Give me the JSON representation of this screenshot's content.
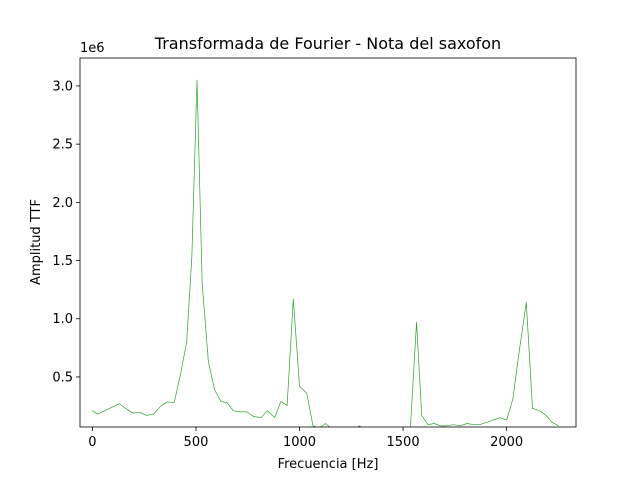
{
  "chart_data": {
    "type": "line",
    "title": "Transformada de Fourier - Nota del saxofon",
    "xlabel": "Frecuencia [Hz]",
    "ylabel": "Amplitud TTF",
    "y_offset_label": "1e6",
    "xlim": [
      -60,
      2335
    ],
    "ylim": [
      70000,
      3240000
    ],
    "x_ticks": [
      0,
      500,
      1000,
      1500,
      2000
    ],
    "x_tick_labels": [
      "0",
      "500",
      "1000",
      "1500",
      "2000"
    ],
    "y_ticks": [
      500000,
      1000000,
      1500000,
      2000000,
      2500000,
      3000000
    ],
    "y_tick_labels": [
      "0.5",
      "1.0",
      "1.5",
      "2.0",
      "2.5",
      "3.0"
    ],
    "grid": false,
    "series": [
      {
        "color": "#2ca02c",
        "x": [
          0,
          25,
          60,
          95,
          130,
          160,
          195,
          230,
          260,
          295,
          330,
          360,
          395,
          425,
          455,
          480,
          505,
          530,
          560,
          590,
          620,
          650,
          680,
          715,
          745,
          780,
          815,
          845,
          880,
          910,
          940,
          970,
          1000,
          1035,
          1065,
          1095,
          1125,
          1160,
          1190,
          1220,
          1255,
          1290,
          1320,
          1350,
          1380,
          1410,
          1440,
          1475,
          1505,
          1535,
          1565,
          1590,
          1620,
          1650,
          1680,
          1710,
          1745,
          1775,
          1810,
          1840,
          1870,
          1905,
          1935,
          1970,
          2000,
          2030,
          2060,
          2095,
          2125,
          2160,
          2190,
          2220,
          2250
        ],
        "y": [
          210000,
          180000,
          210000,
          240000,
          270000,
          230000,
          190000,
          195000,
          170000,
          180000,
          250000,
          285000,
          280000,
          520000,
          800000,
          1530000,
          3050000,
          1300000,
          630000,
          390000,
          290000,
          280000,
          210000,
          200000,
          200000,
          160000,
          150000,
          210000,
          150000,
          290000,
          255000,
          1170000,
          420000,
          360000,
          80000,
          60000,
          100000,
          50000,
          40000,
          50000,
          40000,
          80000,
          40000,
          40000,
          30000,
          40000,
          30000,
          40000,
          40000,
          50000,
          970000,
          170000,
          90000,
          100000,
          80000,
          80000,
          90000,
          80000,
          100000,
          90000,
          90000,
          110000,
          130000,
          150000,
          130000,
          310000,
          710000,
          1140000,
          230000,
          210000,
          170000,
          110000,
          80000
        ]
      }
    ]
  }
}
